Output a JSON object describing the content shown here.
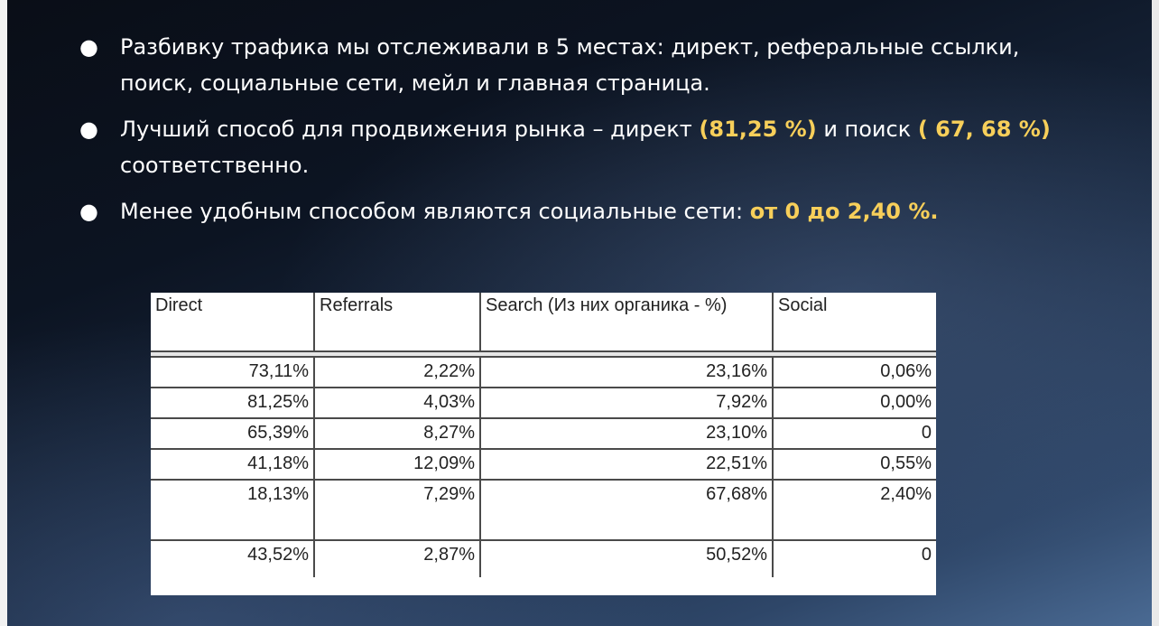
{
  "bullets": [
    {
      "parts": [
        {
          "text": "Разбивку трафика мы отслеживали в 5 местах: директ, реферальные ссылки, поиск, социальные сети, мейл и главная страница.",
          "hl": false
        }
      ]
    },
    {
      "parts": [
        {
          "text": "Лучший способ для продвижения рынка – директ ",
          "hl": false
        },
        {
          "text": "(81,25  %)",
          "hl": true
        },
        {
          "text": " и поиск ",
          "hl": false
        },
        {
          "text": "( 67, 68 %)",
          "hl": true
        },
        {
          "text": " соответственно.",
          "hl": false
        }
      ]
    },
    {
      "parts": [
        {
          "text": "Менее удобным способом являются социальные сети: ",
          "hl": false
        },
        {
          "text": "от 0 до 2,40 %.",
          "hl": true
        }
      ]
    }
  ],
  "bullet_glyph": "●",
  "table": {
    "headers": [
      "Direct",
      "Referrals",
      "Search (Из них органика - %)",
      "Social"
    ],
    "rows": [
      [
        "73,11%",
        "2,22%",
        "23,16%",
        "0,06%"
      ],
      [
        "81,25%",
        "4,03%",
        "7,92%",
        "0,00%"
      ],
      [
        "65,39%",
        "8,27%",
        "23,10%",
        "0"
      ],
      [
        "41,18%",
        "12,09%",
        "22,51%",
        "0,55%"
      ],
      [
        "18,13%",
        "7,29%",
        "67,68%",
        "2,40%"
      ],
      [
        "43,52%",
        "2,87%",
        "50,52%",
        "0"
      ]
    ]
  },
  "colors": {
    "highlight": "#f7cf5a",
    "text": "#ffffff",
    "background_dark": "#0a0e17",
    "background_light": "#4a6a93"
  }
}
